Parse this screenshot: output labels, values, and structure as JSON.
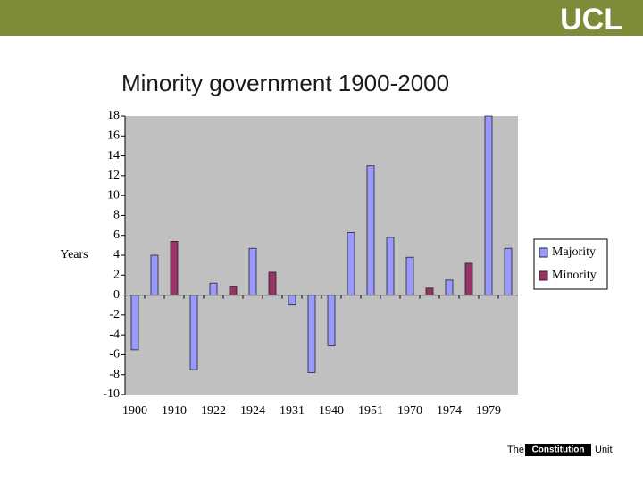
{
  "header": {
    "logo": "UCL"
  },
  "footer": {
    "prefix": "The",
    "name": "Constitution",
    "suffix": "Unit"
  },
  "chart_data": {
    "type": "bar",
    "title": "Minority government 1900-2000",
    "y_label": "Years",
    "categories": [
      "1900",
      null,
      "1910",
      null,
      "1922",
      null,
      "1924",
      null,
      "1931",
      null,
      "1940",
      null,
      "1951",
      null,
      "1970",
      null,
      "1974",
      null,
      "1979",
      null
    ],
    "series": [
      {
        "name": "Majority",
        "color": "#9999ff",
        "values": [
          -5.5,
          4,
          null,
          -7.5,
          1.2,
          null,
          4.7,
          null,
          -1,
          -7.8,
          -5.1,
          6.3,
          13,
          5.8,
          3.8,
          null,
          1.5,
          null,
          18,
          4.7
        ]
      },
      {
        "name": "Minority",
        "color": "#993366",
        "values": [
          null,
          null,
          5.4,
          null,
          null,
          0.9,
          null,
          2.3,
          null,
          null,
          null,
          null,
          null,
          null,
          null,
          0.7,
          null,
          3.2,
          null,
          null
        ]
      }
    ],
    "ylim": [
      -10,
      18
    ],
    "yticks": [
      -10,
      -8,
      -6,
      -4,
      -2,
      0,
      2,
      4,
      6,
      8,
      10,
      12,
      14,
      16,
      18
    ],
    "grid": false,
    "legend": "right"
  }
}
